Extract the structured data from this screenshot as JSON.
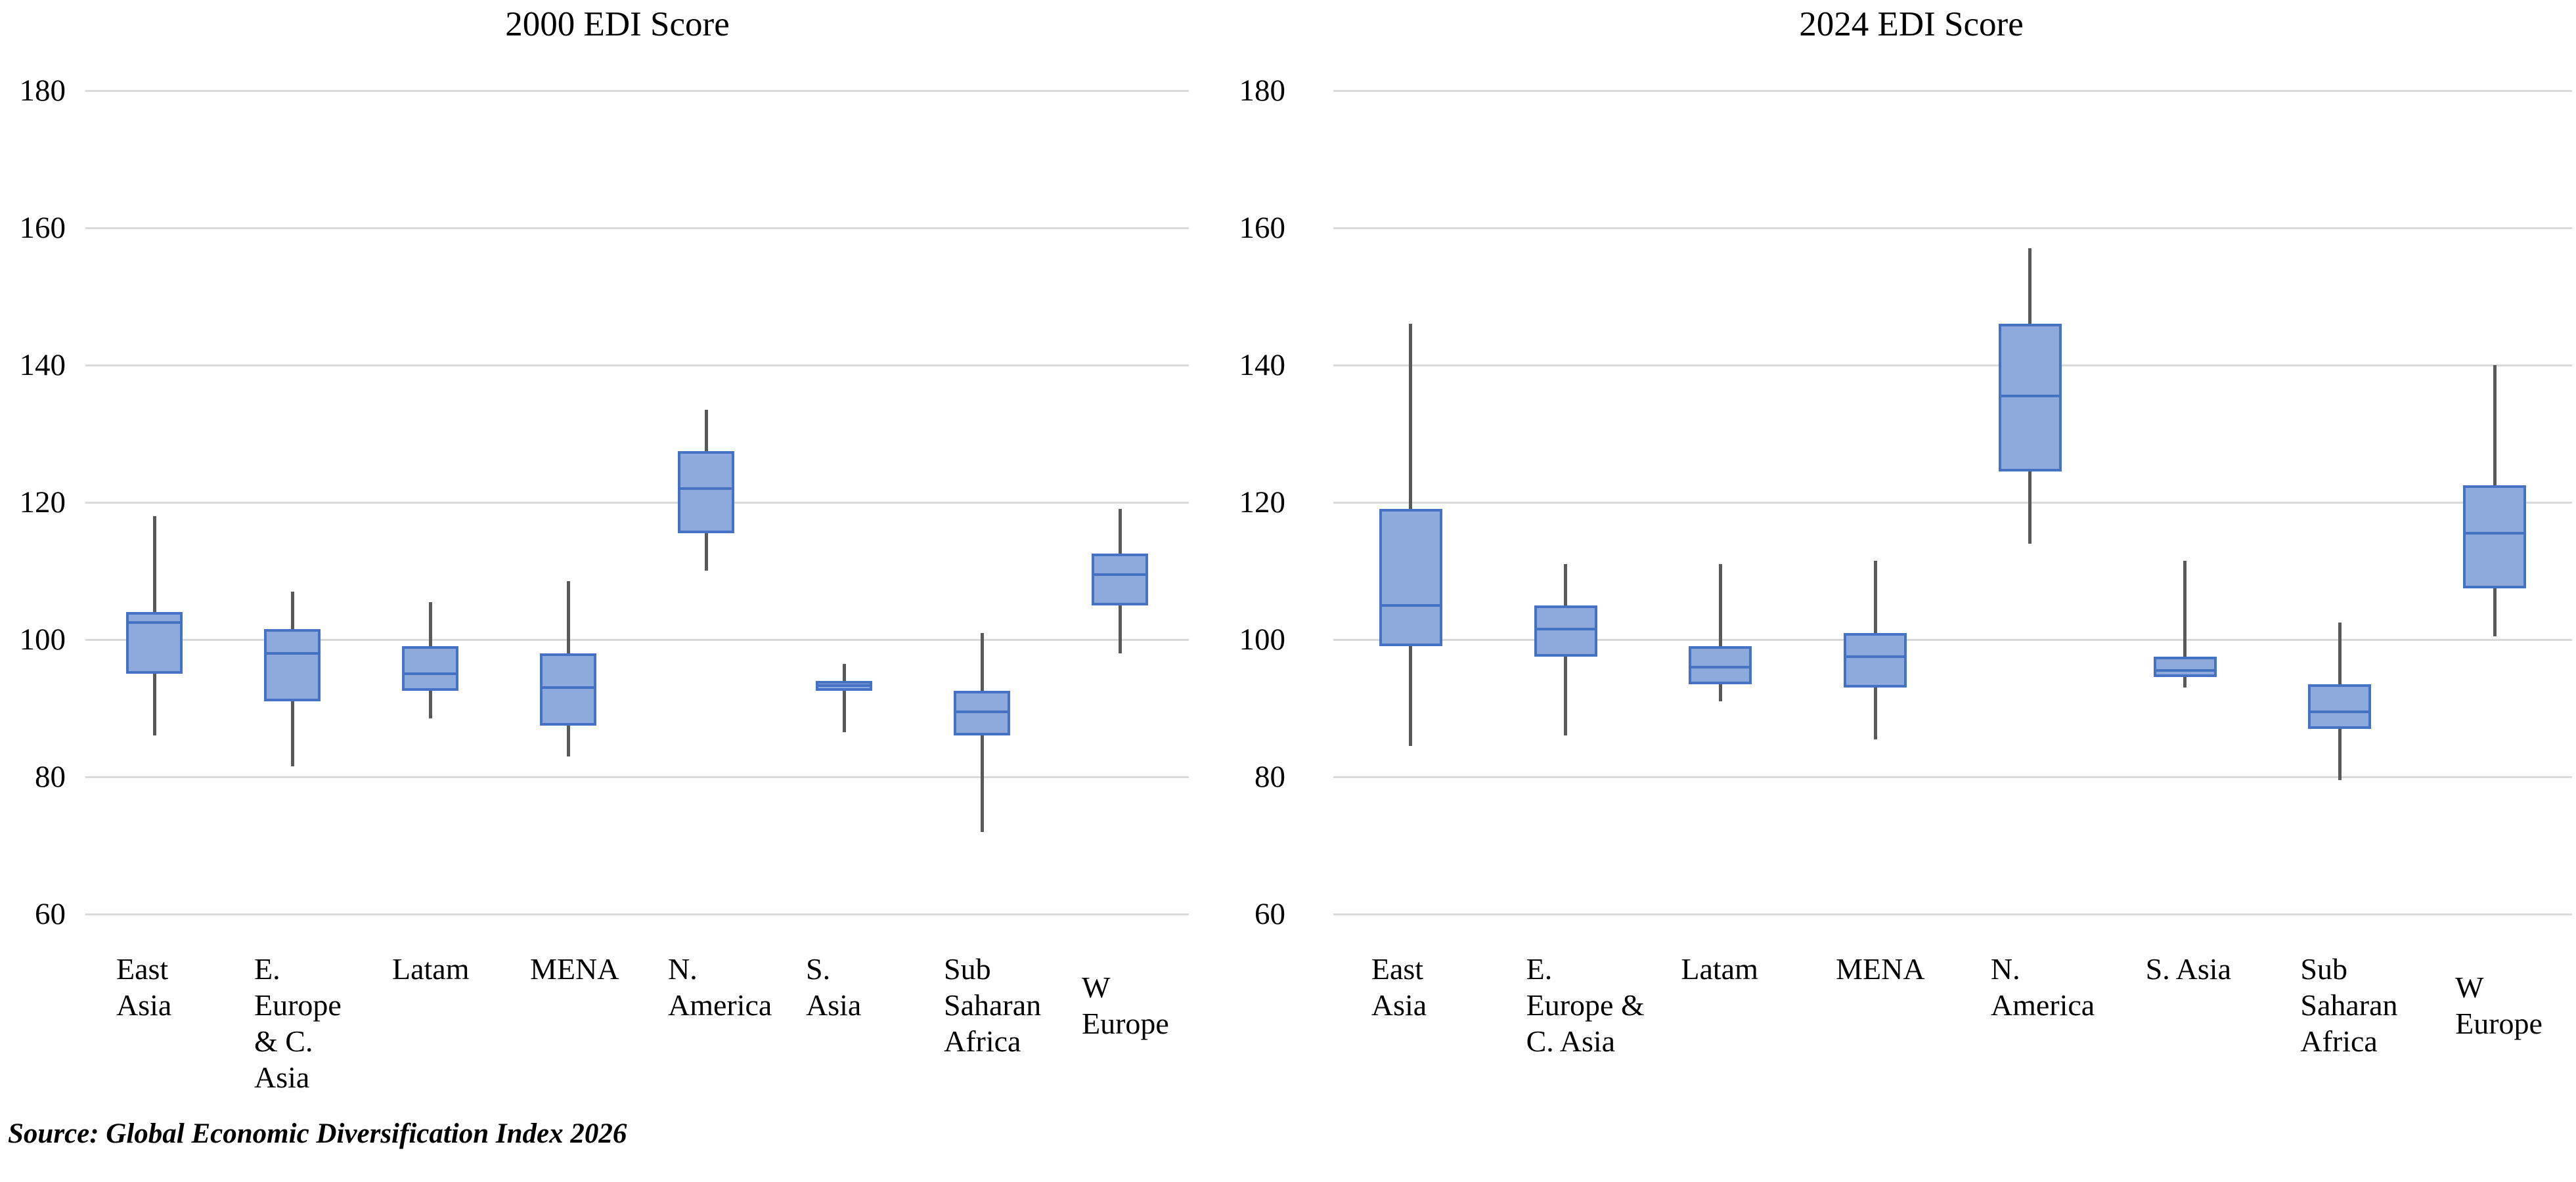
{
  "source_note": "Source: Global Economic Diversification Index 2026",
  "colors": {
    "box_fill": "#8EA9DB",
    "box_border": "#4472C4",
    "whisker": "#595959",
    "gridline": "#D9D9D9",
    "text": "#000000",
    "background": "#FFFFFF"
  },
  "chart_data": [
    {
      "type": "boxplot",
      "title": "2000 EDI Score",
      "ylim": [
        60,
        180
      ],
      "yticks": [
        180,
        160,
        140,
        120,
        100,
        80,
        60
      ],
      "grid": true,
      "legend": "none",
      "categories": [
        "East Asia",
        "E. Europe & C. Asia",
        "Latam",
        "MENA",
        "N. America",
        "S. Asia",
        "Sub Saharan Africa",
        "W Europe"
      ],
      "label_lines": [
        "East\nAsia",
        "E.\nEurope\n& C.\nAsia",
        "Latam",
        "MENA",
        "N.\nAmerica",
        "S.\nAsia",
        "Sub\nSaharan\nAfrica",
        "W\nEurope"
      ],
      "label_dy": [
        0,
        0,
        0,
        0,
        0,
        0,
        0,
        28
      ],
      "series": [
        {
          "category": "East Asia",
          "min": 86,
          "q1": 95,
          "median": 102.5,
          "q3": 104,
          "max": 118
        },
        {
          "category": "E. Europe & C. Asia",
          "min": 81.5,
          "q1": 91,
          "median": 98,
          "q3": 101.5,
          "max": 107
        },
        {
          "category": "Latam",
          "min": 88.5,
          "q1": 92.5,
          "median": 95,
          "q3": 99,
          "max": 105.5
        },
        {
          "category": "MENA",
          "min": 83,
          "q1": 87.5,
          "median": 93,
          "q3": 98,
          "max": 108.5
        },
        {
          "category": "N. America",
          "min": 110,
          "q1": 115.5,
          "median": 122,
          "q3": 127.5,
          "max": 133.5
        },
        {
          "category": "S. Asia",
          "min": 86.5,
          "q1": 92.5,
          "median": 93.3,
          "q3": 94,
          "max": 96.5
        },
        {
          "category": "Sub Saharan Africa",
          "min": 72,
          "q1": 86,
          "median": 89.5,
          "q3": 92.5,
          "max": 101
        },
        {
          "category": "W Europe",
          "min": 98,
          "q1": 105,
          "median": 109.5,
          "q3": 112.5,
          "max": 119
        }
      ]
    },
    {
      "type": "boxplot",
      "title": "2024 EDI Score",
      "ylim": [
        60,
        180
      ],
      "yticks": [
        180,
        160,
        140,
        120,
        100,
        80,
        60
      ],
      "grid": true,
      "legend": "none",
      "categories": [
        "East Asia",
        "E. Europe & C. Asia",
        "Latam",
        "MENA",
        "N. America",
        "S. Asia",
        "Sub Saharan Africa",
        "W Europe"
      ],
      "label_lines": [
        "East\nAsia",
        "E.\nEurope &\nC. Asia",
        "Latam",
        "MENA",
        "N.\nAmerica",
        "S. Asia",
        "Sub\nSaharan\nAfrica",
        "W\nEurope"
      ],
      "label_dy": [
        0,
        0,
        0,
        0,
        0,
        0,
        0,
        28
      ],
      "series": [
        {
          "category": "East Asia",
          "min": 84.5,
          "q1": 99,
          "median": 105,
          "q3": 119,
          "max": 146
        },
        {
          "category": "E. Europe & C. Asia",
          "min": 86,
          "q1": 97.5,
          "median": 101.5,
          "q3": 105,
          "max": 111
        },
        {
          "category": "Latam",
          "min": 91,
          "q1": 93.5,
          "median": 96,
          "q3": 99,
          "max": 111
        },
        {
          "category": "MENA",
          "min": 85.5,
          "q1": 93,
          "median": 97.5,
          "q3": 101,
          "max": 111.5
        },
        {
          "category": "N. America",
          "min": 114,
          "q1": 124.5,
          "median": 135.5,
          "q3": 146,
          "max": 157
        },
        {
          "category": "S. Asia",
          "min": 93,
          "q1": 94.5,
          "median": 95.5,
          "q3": 97.5,
          "max": 111.5
        },
        {
          "category": "Sub Saharan Africa",
          "min": 79.5,
          "q1": 87,
          "median": 89.5,
          "q3": 93.5,
          "max": 102.5
        },
        {
          "category": "W Europe",
          "min": 100.5,
          "q1": 107.5,
          "median": 115.5,
          "q3": 122.5,
          "max": 140
        }
      ]
    }
  ]
}
